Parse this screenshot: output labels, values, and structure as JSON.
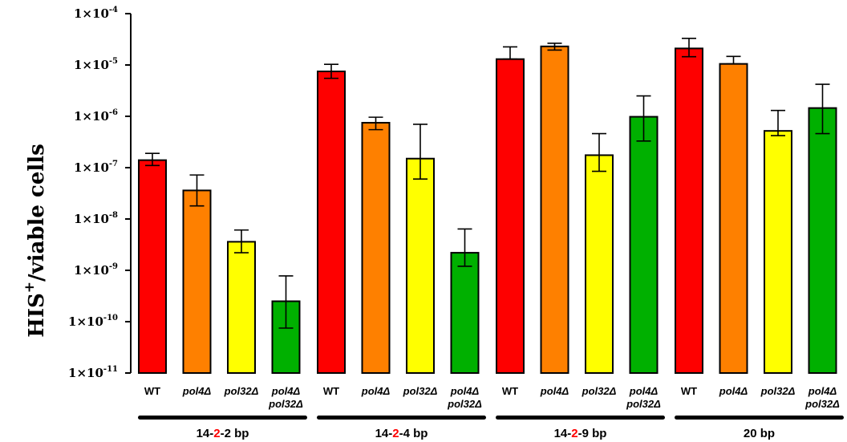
{
  "chart_data": {
    "type": "bar",
    "yscale": "log",
    "ylim": [
      1e-11,
      0.0001
    ],
    "ylabel": {
      "main": "HIS",
      "sup": "+",
      "rest": "/viable cells"
    },
    "yticks": [
      {
        "value": 0.0001,
        "base": "1×10",
        "exp": "-4"
      },
      {
        "value": 1e-05,
        "base": "1×10",
        "exp": "-5"
      },
      {
        "value": 1e-06,
        "base": "1×10",
        "exp": "-6"
      },
      {
        "value": 1e-07,
        "base": "1×10",
        "exp": "-7"
      },
      {
        "value": 1e-08,
        "base": "1×10",
        "exp": "-8"
      },
      {
        "value": 1e-09,
        "base": "1×10",
        "exp": "-9"
      },
      {
        "value": 1e-10,
        "base": "1×10",
        "exp": "-10"
      },
      {
        "value": 1e-11,
        "base": "1×10",
        "exp": "-11"
      }
    ],
    "categories": [
      [
        "WT"
      ],
      [
        "pol4Δ"
      ],
      [
        "pol32Δ"
      ],
      [
        "pol4Δ",
        "pol32Δ"
      ],
      [
        "WT"
      ],
      [
        "pol4Δ"
      ],
      [
        "pol32Δ"
      ],
      [
        "pol4Δ",
        "pol32Δ"
      ],
      [
        "WT"
      ],
      [
        "pol4Δ"
      ],
      [
        "pol32Δ"
      ],
      [
        "pol4Δ",
        "pol32Δ"
      ],
      [
        "WT"
      ],
      [
        "pol4Δ"
      ],
      [
        "pol32Δ"
      ],
      [
        "pol4Δ",
        "pol32Δ"
      ]
    ],
    "italic_categories": [
      false,
      true,
      true,
      true,
      false,
      true,
      true,
      true,
      false,
      true,
      true,
      true,
      false,
      true,
      true,
      true
    ],
    "values": [
      1.4e-07,
      3.6e-08,
      3.6e-09,
      2.5e-10,
      7.5e-06,
      7.5e-07,
      1.5e-07,
      2.2e-09,
      1.3e-05,
      2.3e-05,
      1.75e-07,
      9.8e-07,
      2.1e-05,
      1.05e-05,
      5.2e-07,
      1.45e-06
    ],
    "error_high": [
      1.9e-07,
      7.2e-08,
      6.1e-09,
      7.8e-10,
      1.03e-05,
      9.6e-07,
      7e-07,
      6.4e-09,
      2.25e-05,
      2.65e-05,
      4.6e-07,
      2.5e-06,
      3.3e-05,
      1.47e-05,
      1.3e-06,
      4.2e-06
    ],
    "error_low": [
      1.1e-07,
      1.8e-08,
      2.2e-09,
      7.5e-11,
      5.5e-06,
      5.5e-07,
      6e-08,
      1.2e-09,
      1.3e-05,
      1.95e-05,
      8.5e-08,
      3.3e-07,
      1.45e-05,
      1.05e-05,
      4.2e-07,
      4.6e-07
    ],
    "colors": [
      "#fe0000",
      "#fe8000",
      "#ffff00",
      "#00b000"
    ],
    "groups": [
      {
        "pre": "14-",
        "mid": "2",
        "post": "-2 bp"
      },
      {
        "pre": "14-",
        "mid": "2",
        "post": "-4 bp"
      },
      {
        "pre": "14-",
        "mid": "2",
        "post": "-9 bp"
      },
      {
        "pre": "",
        "mid": "",
        "post": "20 bp"
      }
    ],
    "highlight_color": "#fe0000",
    "grid": false,
    "legend": "none"
  }
}
